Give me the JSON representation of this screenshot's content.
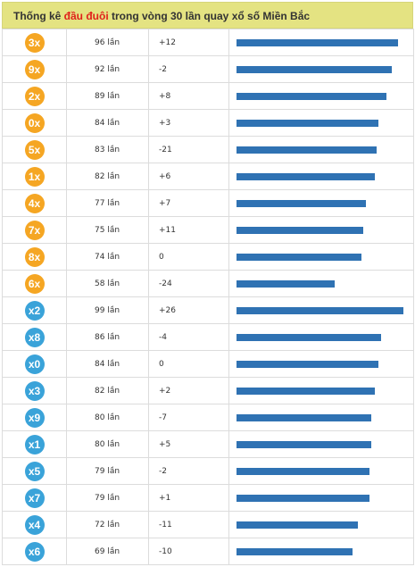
{
  "title": {
    "prefix": "Thống kê ",
    "highlight": "đầu đuôi",
    "suffix": " trong vòng 30 lần quay xổ số Miền Bắc"
  },
  "colors": {
    "header_bg": "#e4e382",
    "highlight": "#e0211b",
    "badge_orange": "#f5a623",
    "badge_blue": "#3aa3d9",
    "bar": "#2f72b3"
  },
  "max_count": 99,
  "rows": [
    {
      "badge": "3x",
      "color": "orange",
      "count_text": "96 lần",
      "count": 96,
      "diff": "+12"
    },
    {
      "badge": "9x",
      "color": "orange",
      "count_text": "92 lần",
      "count": 92,
      "diff": "-2"
    },
    {
      "badge": "2x",
      "color": "orange",
      "count_text": "89 lần",
      "count": 89,
      "diff": "+8"
    },
    {
      "badge": "0x",
      "color": "orange",
      "count_text": "84 lần",
      "count": 84,
      "diff": "+3"
    },
    {
      "badge": "5x",
      "color": "orange",
      "count_text": "83 lần",
      "count": 83,
      "diff": "-21"
    },
    {
      "badge": "1x",
      "color": "orange",
      "count_text": "82 lần",
      "count": 82,
      "diff": "+6"
    },
    {
      "badge": "4x",
      "color": "orange",
      "count_text": "77 lần",
      "count": 77,
      "diff": "+7"
    },
    {
      "badge": "7x",
      "color": "orange",
      "count_text": "75 lần",
      "count": 75,
      "diff": "+11"
    },
    {
      "badge": "8x",
      "color": "orange",
      "count_text": "74 lần",
      "count": 74,
      "diff": "0"
    },
    {
      "badge": "6x",
      "color": "orange",
      "count_text": "58 lần",
      "count": 58,
      "diff": "-24"
    },
    {
      "badge": "x2",
      "color": "blue",
      "count_text": "99 lần",
      "count": 99,
      "diff": "+26"
    },
    {
      "badge": "x8",
      "color": "blue",
      "count_text": "86 lần",
      "count": 86,
      "diff": "-4"
    },
    {
      "badge": "x0",
      "color": "blue",
      "count_text": "84 lần",
      "count": 84,
      "diff": "0"
    },
    {
      "badge": "x3",
      "color": "blue",
      "count_text": "82 lần",
      "count": 82,
      "diff": "+2"
    },
    {
      "badge": "x9",
      "color": "blue",
      "count_text": "80 lần",
      "count": 80,
      "diff": "-7"
    },
    {
      "badge": "x1",
      "color": "blue",
      "count_text": "80 lần",
      "count": 80,
      "diff": "+5"
    },
    {
      "badge": "x5",
      "color": "blue",
      "count_text": "79 lần",
      "count": 79,
      "diff": "-2"
    },
    {
      "badge": "x7",
      "color": "blue",
      "count_text": "79 lần",
      "count": 79,
      "diff": "+1"
    },
    {
      "badge": "x4",
      "color": "blue",
      "count_text": "72 lần",
      "count": 72,
      "diff": "-11"
    },
    {
      "badge": "x6",
      "color": "blue",
      "count_text": "69 lần",
      "count": 69,
      "diff": "-10"
    }
  ]
}
